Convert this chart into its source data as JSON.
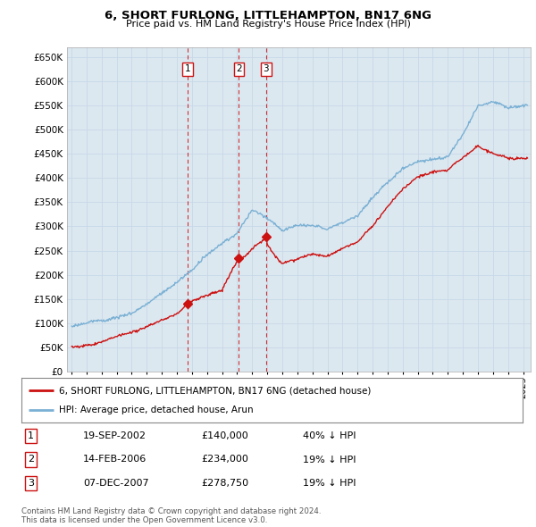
{
  "title": "6, SHORT FURLONG, LITTLEHAMPTON, BN17 6NG",
  "subtitle": "Price paid vs. HM Land Registry's House Price Index (HPI)",
  "ylabel_values": [
    0,
    50000,
    100000,
    150000,
    200000,
    250000,
    300000,
    350000,
    400000,
    450000,
    500000,
    550000,
    600000,
    650000
  ],
  "ylim": [
    0,
    670000
  ],
  "xlim_start": 1994.7,
  "xlim_end": 2025.5,
  "sale_dates": [
    2002.72,
    2006.12,
    2007.92
  ],
  "sale_prices": [
    140000,
    234000,
    278750
  ],
  "sale_labels": [
    "1",
    "2",
    "3"
  ],
  "hpi_anchors_years": [
    1995,
    1996,
    1997,
    1998,
    1999,
    2000,
    2001,
    2002,
    2003,
    2004,
    2005,
    2006,
    2007,
    2008,
    2009,
    2010,
    2011,
    2012,
    2013,
    2014,
    2015,
    2016,
    2017,
    2018,
    2019,
    2020,
    2021,
    2022,
    2023,
    2024,
    2025
  ],
  "hpi_anchors_vals": [
    93000,
    98000,
    105000,
    112000,
    122000,
    138000,
    162000,
    185000,
    210000,
    240000,
    265000,
    285000,
    335000,
    320000,
    295000,
    308000,
    305000,
    298000,
    310000,
    325000,
    360000,
    390000,
    420000,
    435000,
    440000,
    445000,
    490000,
    550000,
    560000,
    545000,
    550000
  ],
  "prop_anchors_years": [
    1995,
    1996,
    1997,
    1998,
    1999,
    2000,
    2001,
    2002,
    2002.72,
    2003,
    2004,
    2005,
    2006,
    2006.12,
    2006.5,
    2007,
    2007.92,
    2008,
    2008.5,
    2009,
    2010,
    2011,
    2012,
    2013,
    2014,
    2015,
    2016,
    2017,
    2018,
    2019,
    2020,
    2021,
    2022,
    2023,
    2024,
    2025
  ],
  "prop_anchors_vals": [
    50000,
    55000,
    65000,
    75000,
    82000,
    90000,
    105000,
    118000,
    140000,
    145000,
    158000,
    170000,
    230000,
    234000,
    238000,
    255000,
    278750,
    265000,
    240000,
    225000,
    235000,
    245000,
    240000,
    255000,
    268000,
    300000,
    340000,
    375000,
    400000,
    410000,
    415000,
    440000,
    465000,
    450000,
    440000,
    440000
  ],
  "legend_red_label": "6, SHORT FURLONG, LITTLEHAMPTON, BN17 6NG (detached house)",
  "legend_blue_label": "HPI: Average price, detached house, Arun",
  "red_color": "#cc1111",
  "blue_color": "#7ab0d4",
  "table_rows": [
    {
      "num": "1",
      "date": "19-SEP-2002",
      "price": "£140,000",
      "pct": "40% ↓ HPI"
    },
    {
      "num": "2",
      "date": "14-FEB-2006",
      "price": "£234,000",
      "pct": "19% ↓ HPI"
    },
    {
      "num": "3",
      "date": "07-DEC-2007",
      "price": "£278,750",
      "pct": "19% ↓ HPI"
    }
  ],
  "footnote": "Contains HM Land Registry data © Crown copyright and database right 2024.\nThis data is licensed under the Open Government Licence v3.0.",
  "bg_color": "#ffffff",
  "grid_color": "#c8d8e8",
  "plot_bg_color": "#dce8f0"
}
